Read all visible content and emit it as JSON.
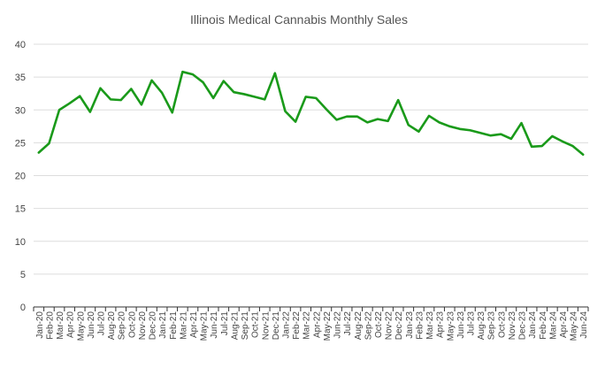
{
  "chart_data": {
    "type": "line",
    "title": "Illinois Medical Cannabis Monthly Sales",
    "xlabel": "",
    "ylabel": "",
    "ylim": [
      0,
      40
    ],
    "yticks": [
      0,
      5,
      10,
      15,
      20,
      25,
      30,
      35,
      40
    ],
    "grid": true,
    "legend": "none",
    "line_color": "#1a9a1a",
    "grid_color": "#dddddd",
    "categories": [
      "Jan-20",
      "Feb-20",
      "Mar-20",
      "Apr-20",
      "May-20",
      "Jun-20",
      "Jul-20",
      "Aug-20",
      "Sep-20",
      "Oct-20",
      "Nov-20",
      "Dec-20",
      "Jan-21",
      "Feb-21",
      "Mar-21",
      "Apr-21",
      "May-21",
      "Jun-21",
      "Jul-21",
      "Aug-21",
      "Sep-21",
      "Oct-21",
      "Nov-21",
      "Dec-21",
      "Jan-22",
      "Feb-22",
      "Mar-22",
      "Apr-22",
      "May-22",
      "Jun-22",
      "Jul-22",
      "Aug-22",
      "Sep-22",
      "Oct-22",
      "Nov-22",
      "Dec-22",
      "Jan-23",
      "Feb-23",
      "Mar-23",
      "Apr-23",
      "May-23",
      "Jun-23",
      "Jul-23",
      "Aug-23",
      "Sep-23",
      "Oct-23",
      "Nov-23",
      "Dec-23",
      "Jan-24",
      "Feb-24",
      "Mar-24",
      "Apr-24",
      "May-24",
      "Jun-24"
    ],
    "series": [
      {
        "values": [
          23.5,
          24.9,
          30.0,
          31.0,
          32.1,
          29.7,
          33.3,
          31.6,
          31.5,
          33.2,
          30.8,
          34.5,
          32.6,
          29.6,
          35.8,
          35.4,
          34.2,
          31.8,
          34.4,
          32.7,
          32.4,
          32.0,
          31.6,
          35.6,
          29.8,
          28.2,
          32.0,
          31.8,
          30.1,
          28.5,
          29.0,
          29.0,
          28.1,
          28.6,
          28.3,
          31.5,
          27.7,
          26.7,
          29.1,
          28.1,
          27.5,
          27.1,
          26.9,
          26.5,
          26.1,
          26.3,
          25.6,
          28.0,
          24.4,
          24.5,
          26.0,
          25.2,
          24.5,
          23.2
        ]
      }
    ]
  }
}
